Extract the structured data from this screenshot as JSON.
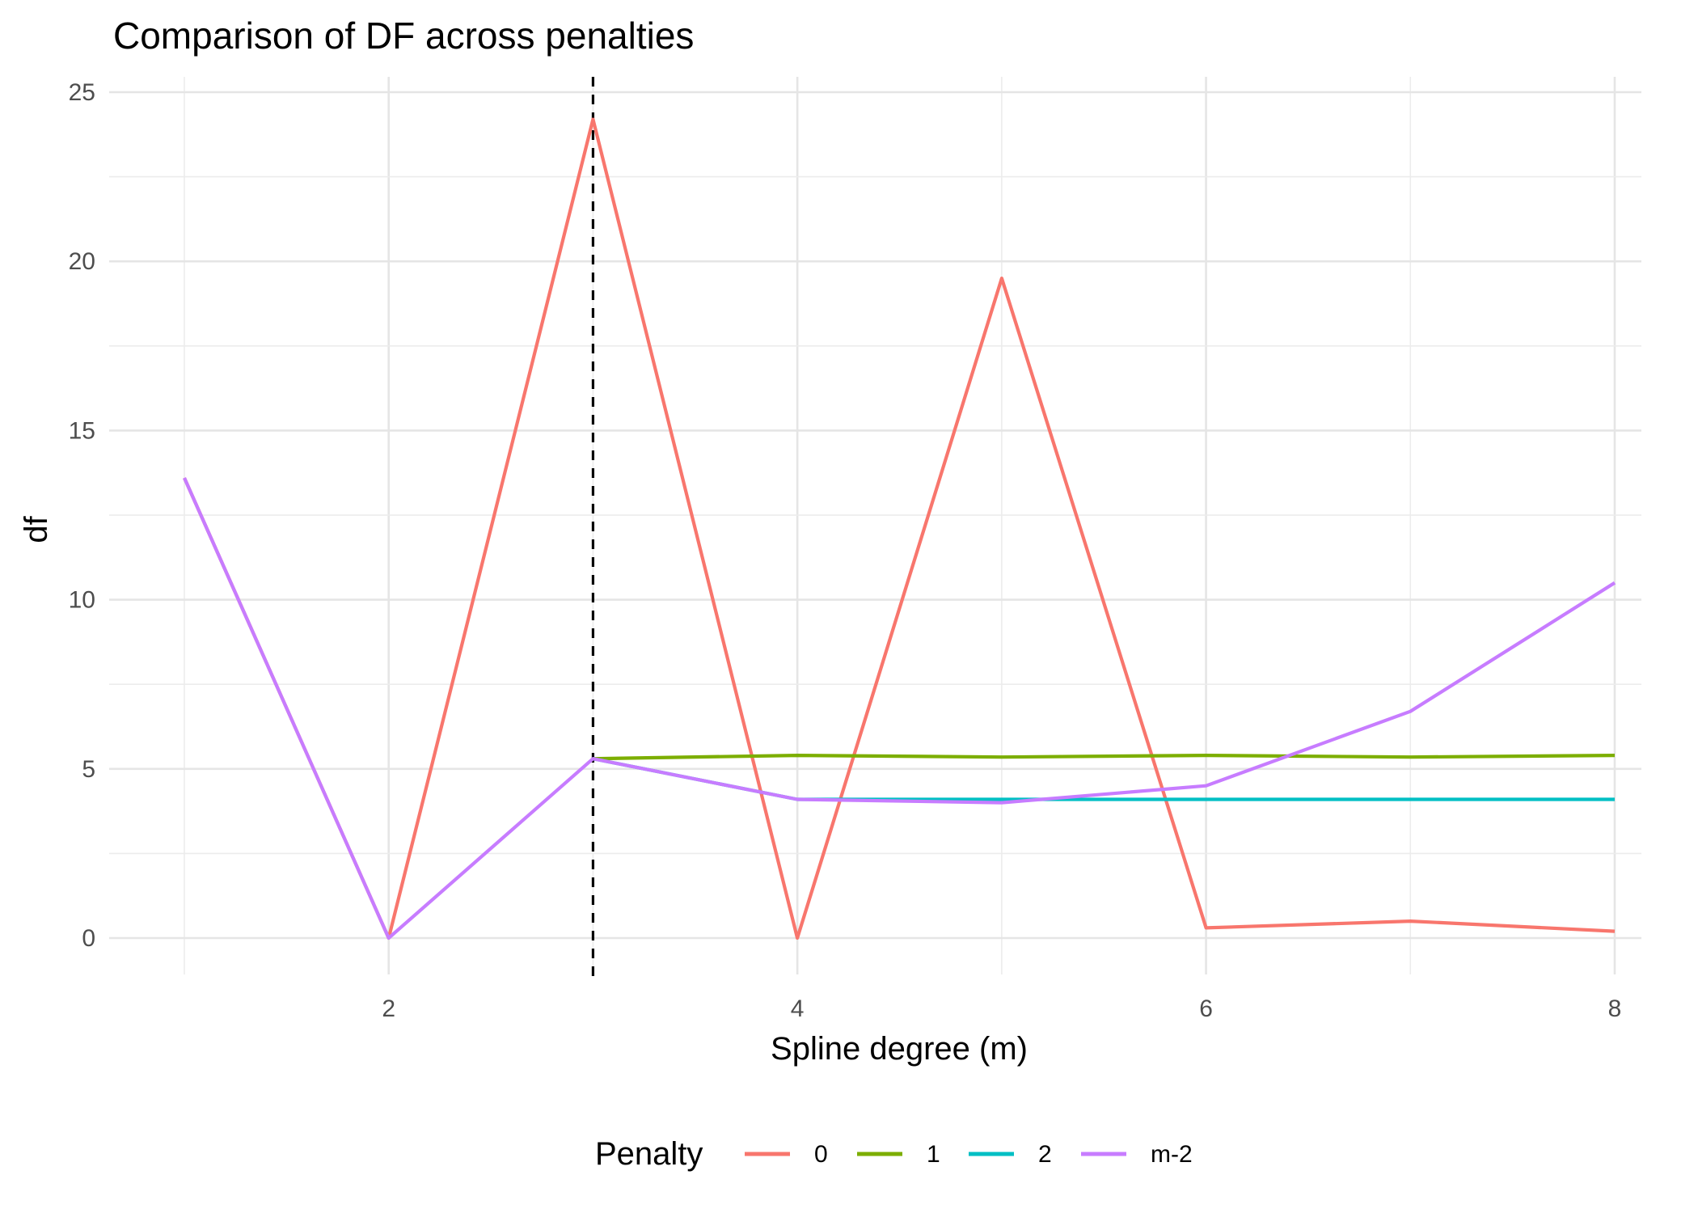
{
  "chart_data": {
    "type": "line",
    "title": "Comparison of DF across penalties",
    "xlabel": "Spline degree (m)",
    "ylabel": "df",
    "xlim": [
      1,
      8
    ],
    "ylim": [
      0,
      25
    ],
    "x_ticks": [
      2,
      4,
      6,
      8
    ],
    "y_ticks": [
      0,
      5,
      10,
      15,
      20,
      25
    ],
    "grid": true,
    "reference_line": {
      "orientation": "vertical",
      "x": 3,
      "style": "dashed",
      "color": "#000000"
    },
    "legend": {
      "title": "Penalty",
      "position": "bottom"
    },
    "series": [
      {
        "name": "0",
        "color": "#F8766D",
        "x": [
          1,
          2,
          3,
          4,
          5,
          6,
          7,
          8
        ],
        "y": [
          13.6,
          0.0,
          24.2,
          0.0,
          19.5,
          0.3,
          0.5,
          0.2
        ]
      },
      {
        "name": "1",
        "color": "#7CAE00",
        "x": [
          3,
          4,
          5,
          6,
          7,
          8
        ],
        "y": [
          5.3,
          5.4,
          5.35,
          5.4,
          5.35,
          5.4
        ]
      },
      {
        "name": "2",
        "color": "#00BFC4",
        "x": [
          3,
          4,
          5,
          6,
          7,
          8
        ],
        "y": [
          5.3,
          4.1,
          4.1,
          4.1,
          4.1,
          4.1
        ]
      },
      {
        "name": "m-2",
        "color": "#C77CFF",
        "x": [
          1,
          2,
          3,
          4,
          5,
          6,
          7,
          8
        ],
        "y": [
          13.6,
          0.0,
          5.3,
          4.1,
          4.0,
          4.5,
          6.7,
          10.5
        ]
      }
    ]
  }
}
